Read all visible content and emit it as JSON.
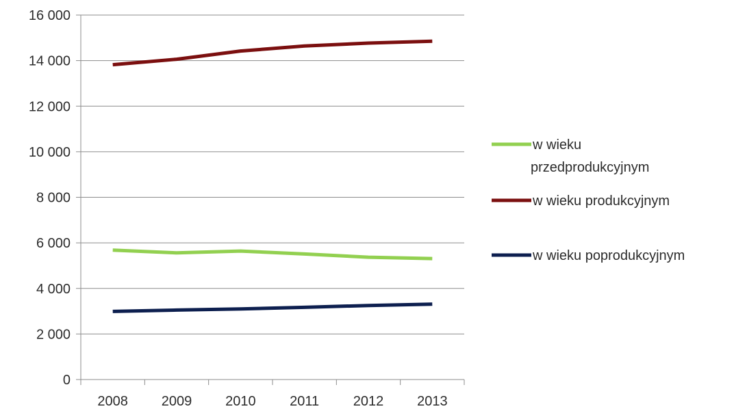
{
  "chart_data": {
    "type": "line",
    "title": "",
    "xlabel": "",
    "ylabel": "",
    "categories": [
      "2008",
      "2009",
      "2010",
      "2011",
      "2012",
      "2013"
    ],
    "ylim": [
      0,
      16000
    ],
    "yticks": [
      0,
      2000,
      4000,
      6000,
      8000,
      10000,
      12000,
      14000,
      16000
    ],
    "ytick_labels": [
      "0",
      "2 000",
      "4 000",
      "6 000",
      "8 000",
      "10 000",
      "12 000",
      "14 000",
      "16 000"
    ],
    "grid": "horizontal",
    "legend_position": "right",
    "series": [
      {
        "name": "w wieku przedprodukcyjnym",
        "legend_lines": [
          "w wieku",
          "przedprodukcyjnym"
        ],
        "color": "#92d050",
        "values": [
          5680,
          5560,
          5640,
          5510,
          5370,
          5310
        ]
      },
      {
        "name": "w wieku produkcyjnym",
        "legend_lines": [
          "w wieku produkcyjnym"
        ],
        "color": "#7b0f0f",
        "values": [
          13820,
          14060,
          14420,
          14640,
          14770,
          14850
        ]
      },
      {
        "name": "w wieku poprodukcyjnym",
        "legend_lines": [
          "w wieku poprodukcyjnym"
        ],
        "color": "#0d1f4f",
        "values": [
          2990,
          3050,
          3100,
          3170,
          3250,
          3310
        ]
      }
    ]
  }
}
